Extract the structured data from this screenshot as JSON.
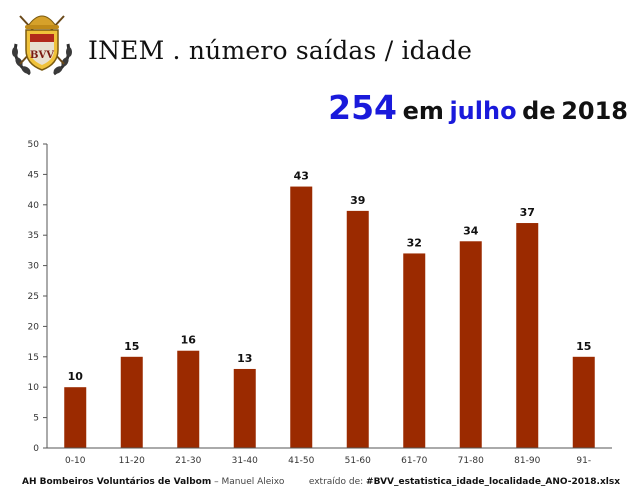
{
  "header": {
    "title": "INEM . número saídas / idade",
    "logo_monogram": "BVV"
  },
  "headline": {
    "total": "254",
    "em": "em",
    "month": "julho",
    "de": "de",
    "year": "2018"
  },
  "footer": {
    "organization": "AH Bombeiros Voluntários de Valbom",
    "author": "Manuel Aleixo",
    "source_prefix": "extraído de:",
    "source_file": "#BVV_estatistica_idade_localidade_ANO-2018.xlsx"
  },
  "colors": {
    "bar": "#9b2a00",
    "headline_accent": "#1a1adb"
  },
  "chart_data": {
    "type": "bar",
    "categories": [
      "0-10",
      "11-20",
      "21-30",
      "31-40",
      "41-50",
      "51-60",
      "61-70",
      "71-80",
      "81-90",
      "91-"
    ],
    "values": [
      10,
      15,
      16,
      13,
      43,
      39,
      32,
      34,
      37,
      15
    ],
    "title": "",
    "xlabel": "",
    "ylabel": "",
    "ylim": [
      0,
      50
    ],
    "yticks": [
      0,
      5,
      10,
      15,
      20,
      25,
      30,
      35,
      40,
      45,
      50
    ],
    "grid": false,
    "legend": "none",
    "data_labels": true
  }
}
